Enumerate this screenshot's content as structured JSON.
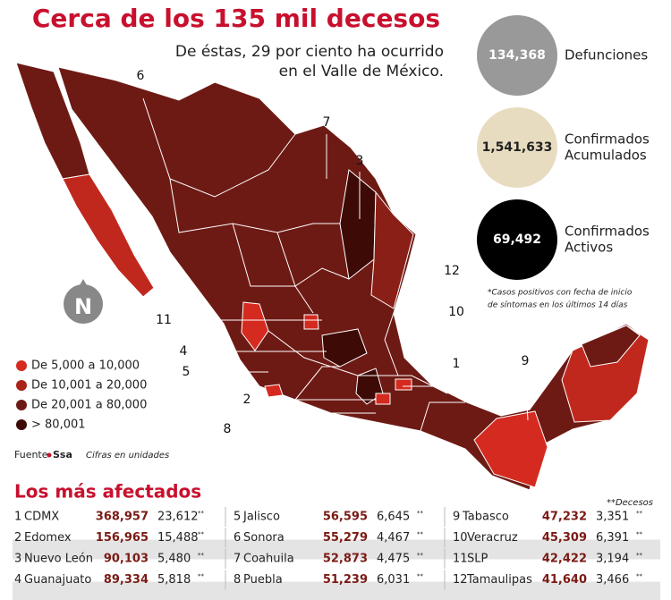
{
  "header": {
    "title": "Cerca de los 135 mil decesos",
    "subtitle": [
      "De éstas, 29 por ciento ha ocurrido",
      "en el Valle de México."
    ]
  },
  "stats": [
    {
      "value": "134,368",
      "label": [
        "Defunciones"
      ]
    },
    {
      "value": "1,541,633",
      "label": [
        "Confirmados",
        "Acumulados"
      ]
    },
    {
      "value": "69,492",
      "label": [
        "Confirmados",
        "Activos"
      ]
    }
  ],
  "note": [
    "*Casos positivos con fecha de inicio",
    "de síntomas en los últimos 14 días"
  ],
  "legend": [
    {
      "label": "De 5,000 a 10,000",
      "color": "#d42a1f"
    },
    {
      "label": "De 10,001 a 20,000",
      "color": "#a82318"
    },
    {
      "label": "De 20,001 a 80,000",
      "color": "#6e1a14"
    },
    {
      "label": "> 80,001",
      "color": "#3d0a06"
    }
  ],
  "map_labels": [
    "6",
    "7",
    "3",
    "12",
    "10",
    "1",
    "9",
    "11",
    "4",
    "5",
    "2",
    "8"
  ],
  "compass": "N",
  "source": {
    "prefix": "Fuente",
    "name": "Ssa",
    "units": "Cifras en unidades"
  },
  "table": {
    "title": "Los más afectados",
    "footnote": "**Decesos",
    "marker": "**",
    "rows": [
      [
        "1",
        "CDMX",
        "368,957",
        "23,612"
      ],
      [
        "2",
        "Edomex",
        "156,965",
        "15,488"
      ],
      [
        "3",
        "Nuevo León",
        "90,103",
        "5,480"
      ],
      [
        "4",
        "Guanajuato",
        "89,334",
        "5,818"
      ],
      [
        "5",
        "Jalisco",
        "56,595",
        "6,645"
      ],
      [
        "6",
        "Sonora",
        "55,279",
        "4,467"
      ],
      [
        "7",
        "Coahuila",
        "52,873",
        "4,475"
      ],
      [
        "8",
        "Puebla",
        "51,239",
        "6,031"
      ],
      [
        "9",
        "Tabasco",
        "47,232",
        "3,351"
      ],
      [
        "10",
        "Veracruz",
        "45,309",
        "6,391"
      ],
      [
        "11",
        "SLP",
        "42,422",
        "3,194"
      ],
      [
        "12",
        "Tamaulipas",
        "41,640",
        "3,466"
      ]
    ]
  }
}
